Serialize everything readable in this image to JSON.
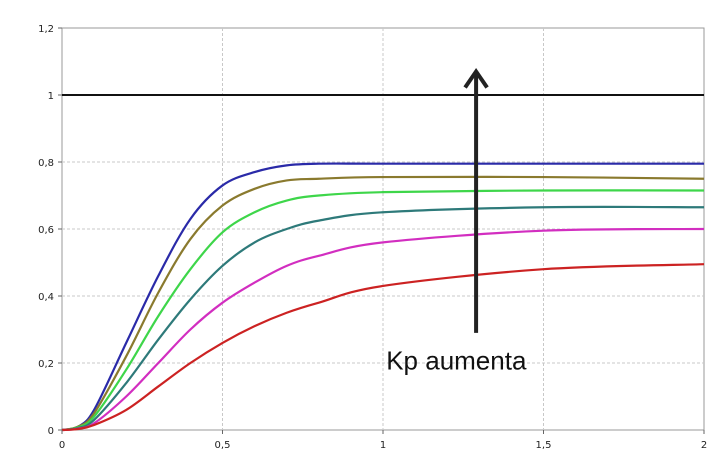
{
  "chart_data": {
    "type": "line",
    "title": "",
    "xlabel": "",
    "ylabel": "",
    "xlim": [
      0,
      2
    ],
    "ylim": [
      0,
      1.2
    ],
    "grid": true,
    "x_ticks": [
      "0",
      "0,5",
      "1",
      "1,5",
      "2"
    ],
    "y_ticks": [
      "0",
      "0,2",
      "0,4",
      "0,6",
      "0,8",
      "1",
      "1,2"
    ],
    "reference_line": {
      "y": 1.0,
      "color": "#111111"
    },
    "series": [
      {
        "color": "#2a2aa8",
        "x": [
          0,
          0.05,
          0.1,
          0.2,
          0.3,
          0.4,
          0.5,
          0.6,
          0.7,
          0.8,
          1.0,
          1.5,
          2.0
        ],
        "values": [
          0,
          0.01,
          0.06,
          0.26,
          0.46,
          0.63,
          0.73,
          0.77,
          0.79,
          0.795,
          0.795,
          0.795,
          0.795
        ]
      },
      {
        "color": "#8a7a2e",
        "x": [
          0,
          0.05,
          0.1,
          0.2,
          0.3,
          0.4,
          0.5,
          0.6,
          0.7,
          0.8,
          1.0,
          1.5,
          2.0
        ],
        "values": [
          0,
          0.01,
          0.05,
          0.22,
          0.41,
          0.57,
          0.67,
          0.72,
          0.745,
          0.75,
          0.755,
          0.755,
          0.75
        ]
      },
      {
        "color": "#3ed64a",
        "x": [
          0,
          0.05,
          0.1,
          0.2,
          0.3,
          0.4,
          0.5,
          0.6,
          0.7,
          0.8,
          1.0,
          1.5,
          2.0
        ],
        "values": [
          0,
          0.008,
          0.04,
          0.18,
          0.34,
          0.48,
          0.59,
          0.65,
          0.685,
          0.7,
          0.71,
          0.715,
          0.715
        ]
      },
      {
        "color": "#2e7a7a",
        "x": [
          0,
          0.05,
          0.1,
          0.2,
          0.3,
          0.4,
          0.5,
          0.6,
          0.7,
          0.8,
          1.0,
          1.5,
          2.0
        ],
        "values": [
          0,
          0.006,
          0.03,
          0.14,
          0.27,
          0.39,
          0.49,
          0.56,
          0.6,
          0.625,
          0.65,
          0.665,
          0.665
        ]
      },
      {
        "color": "#d22ec0",
        "x": [
          0,
          0.05,
          0.1,
          0.2,
          0.3,
          0.4,
          0.5,
          0.6,
          0.7,
          0.8,
          1.0,
          1.5,
          2.0
        ],
        "values": [
          0,
          0.004,
          0.02,
          0.1,
          0.2,
          0.3,
          0.38,
          0.44,
          0.49,
          0.52,
          0.56,
          0.595,
          0.6
        ]
      },
      {
        "color": "#cc2222",
        "x": [
          0,
          0.05,
          0.1,
          0.2,
          0.3,
          0.4,
          0.5,
          0.6,
          0.7,
          0.8,
          1.0,
          1.5,
          2.0
        ],
        "values": [
          0,
          0.003,
          0.015,
          0.06,
          0.13,
          0.2,
          0.26,
          0.31,
          0.35,
          0.38,
          0.43,
          0.48,
          0.495
        ]
      }
    ],
    "annotation": {
      "text": "Kp aumenta",
      "arrow_x": 1.29,
      "arrow_y_start": 0.29,
      "arrow_y_end": 1.07,
      "text_x": 1.01,
      "text_y": 0.18
    }
  }
}
